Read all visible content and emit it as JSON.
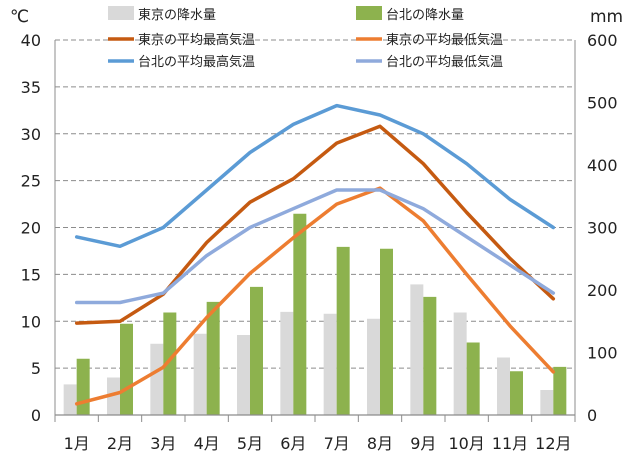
{
  "chart_data": {
    "type": "bar+line",
    "categories": [
      "1月",
      "2月",
      "3月",
      "4月",
      "5月",
      "6月",
      "7月",
      "8月",
      "9月",
      "10月",
      "11月",
      "12月"
    ],
    "left_axis": {
      "unit": "℃",
      "min": 0,
      "max": 40,
      "ticks": [
        0,
        5,
        10,
        15,
        20,
        25,
        30,
        35,
        40
      ]
    },
    "right_axis": {
      "unit": "mm",
      "min": 0,
      "max": 600,
      "ticks": [
        0,
        100,
        200,
        300,
        400,
        500,
        600
      ]
    },
    "grid": true,
    "legend_position": "top",
    "bar_series": [
      {
        "name": "東京の降水量",
        "color": "#d9d9d9",
        "axis": "right",
        "values": [
          49,
          60,
          114,
          130,
          128,
          165,
          162,
          154,
          209,
          164,
          92,
          40
        ]
      },
      {
        "name": "台北の降水量",
        "color": "#8db24e",
        "axis": "right",
        "values": [
          90,
          146,
          164,
          181,
          205,
          322,
          269,
          266,
          189,
          116,
          70,
          77
        ]
      }
    ],
    "line_series": [
      {
        "name": "東京の平均最高気温",
        "color": "#c55a11",
        "axis": "left",
        "values": [
          9.8,
          10.0,
          12.9,
          18.4,
          22.7,
          25.2,
          29.0,
          30.8,
          26.8,
          21.6,
          16.7,
          12.4
        ]
      },
      {
        "name": "東京の平均最低気温",
        "color": "#ed7d31",
        "axis": "left",
        "values": [
          1.2,
          2.4,
          5.1,
          10.4,
          15.1,
          18.9,
          22.5,
          24.2,
          20.7,
          15.0,
          9.5,
          4.6
        ]
      },
      {
        "name": "台北の平均最高気温",
        "color": "#5b9bd5",
        "axis": "left",
        "values": [
          19.0,
          18.0,
          20.0,
          24.0,
          28.0,
          31.0,
          33.0,
          32.0,
          30.0,
          26.8,
          23.0,
          20.0
        ]
      },
      {
        "name": "台北の平均最低気温",
        "color": "#8faadc",
        "axis": "left",
        "values": [
          12.0,
          12.0,
          13.0,
          17.0,
          20.0,
          22.0,
          24.0,
          24.0,
          22.0,
          19.0,
          16.0,
          13.0
        ]
      }
    ]
  }
}
